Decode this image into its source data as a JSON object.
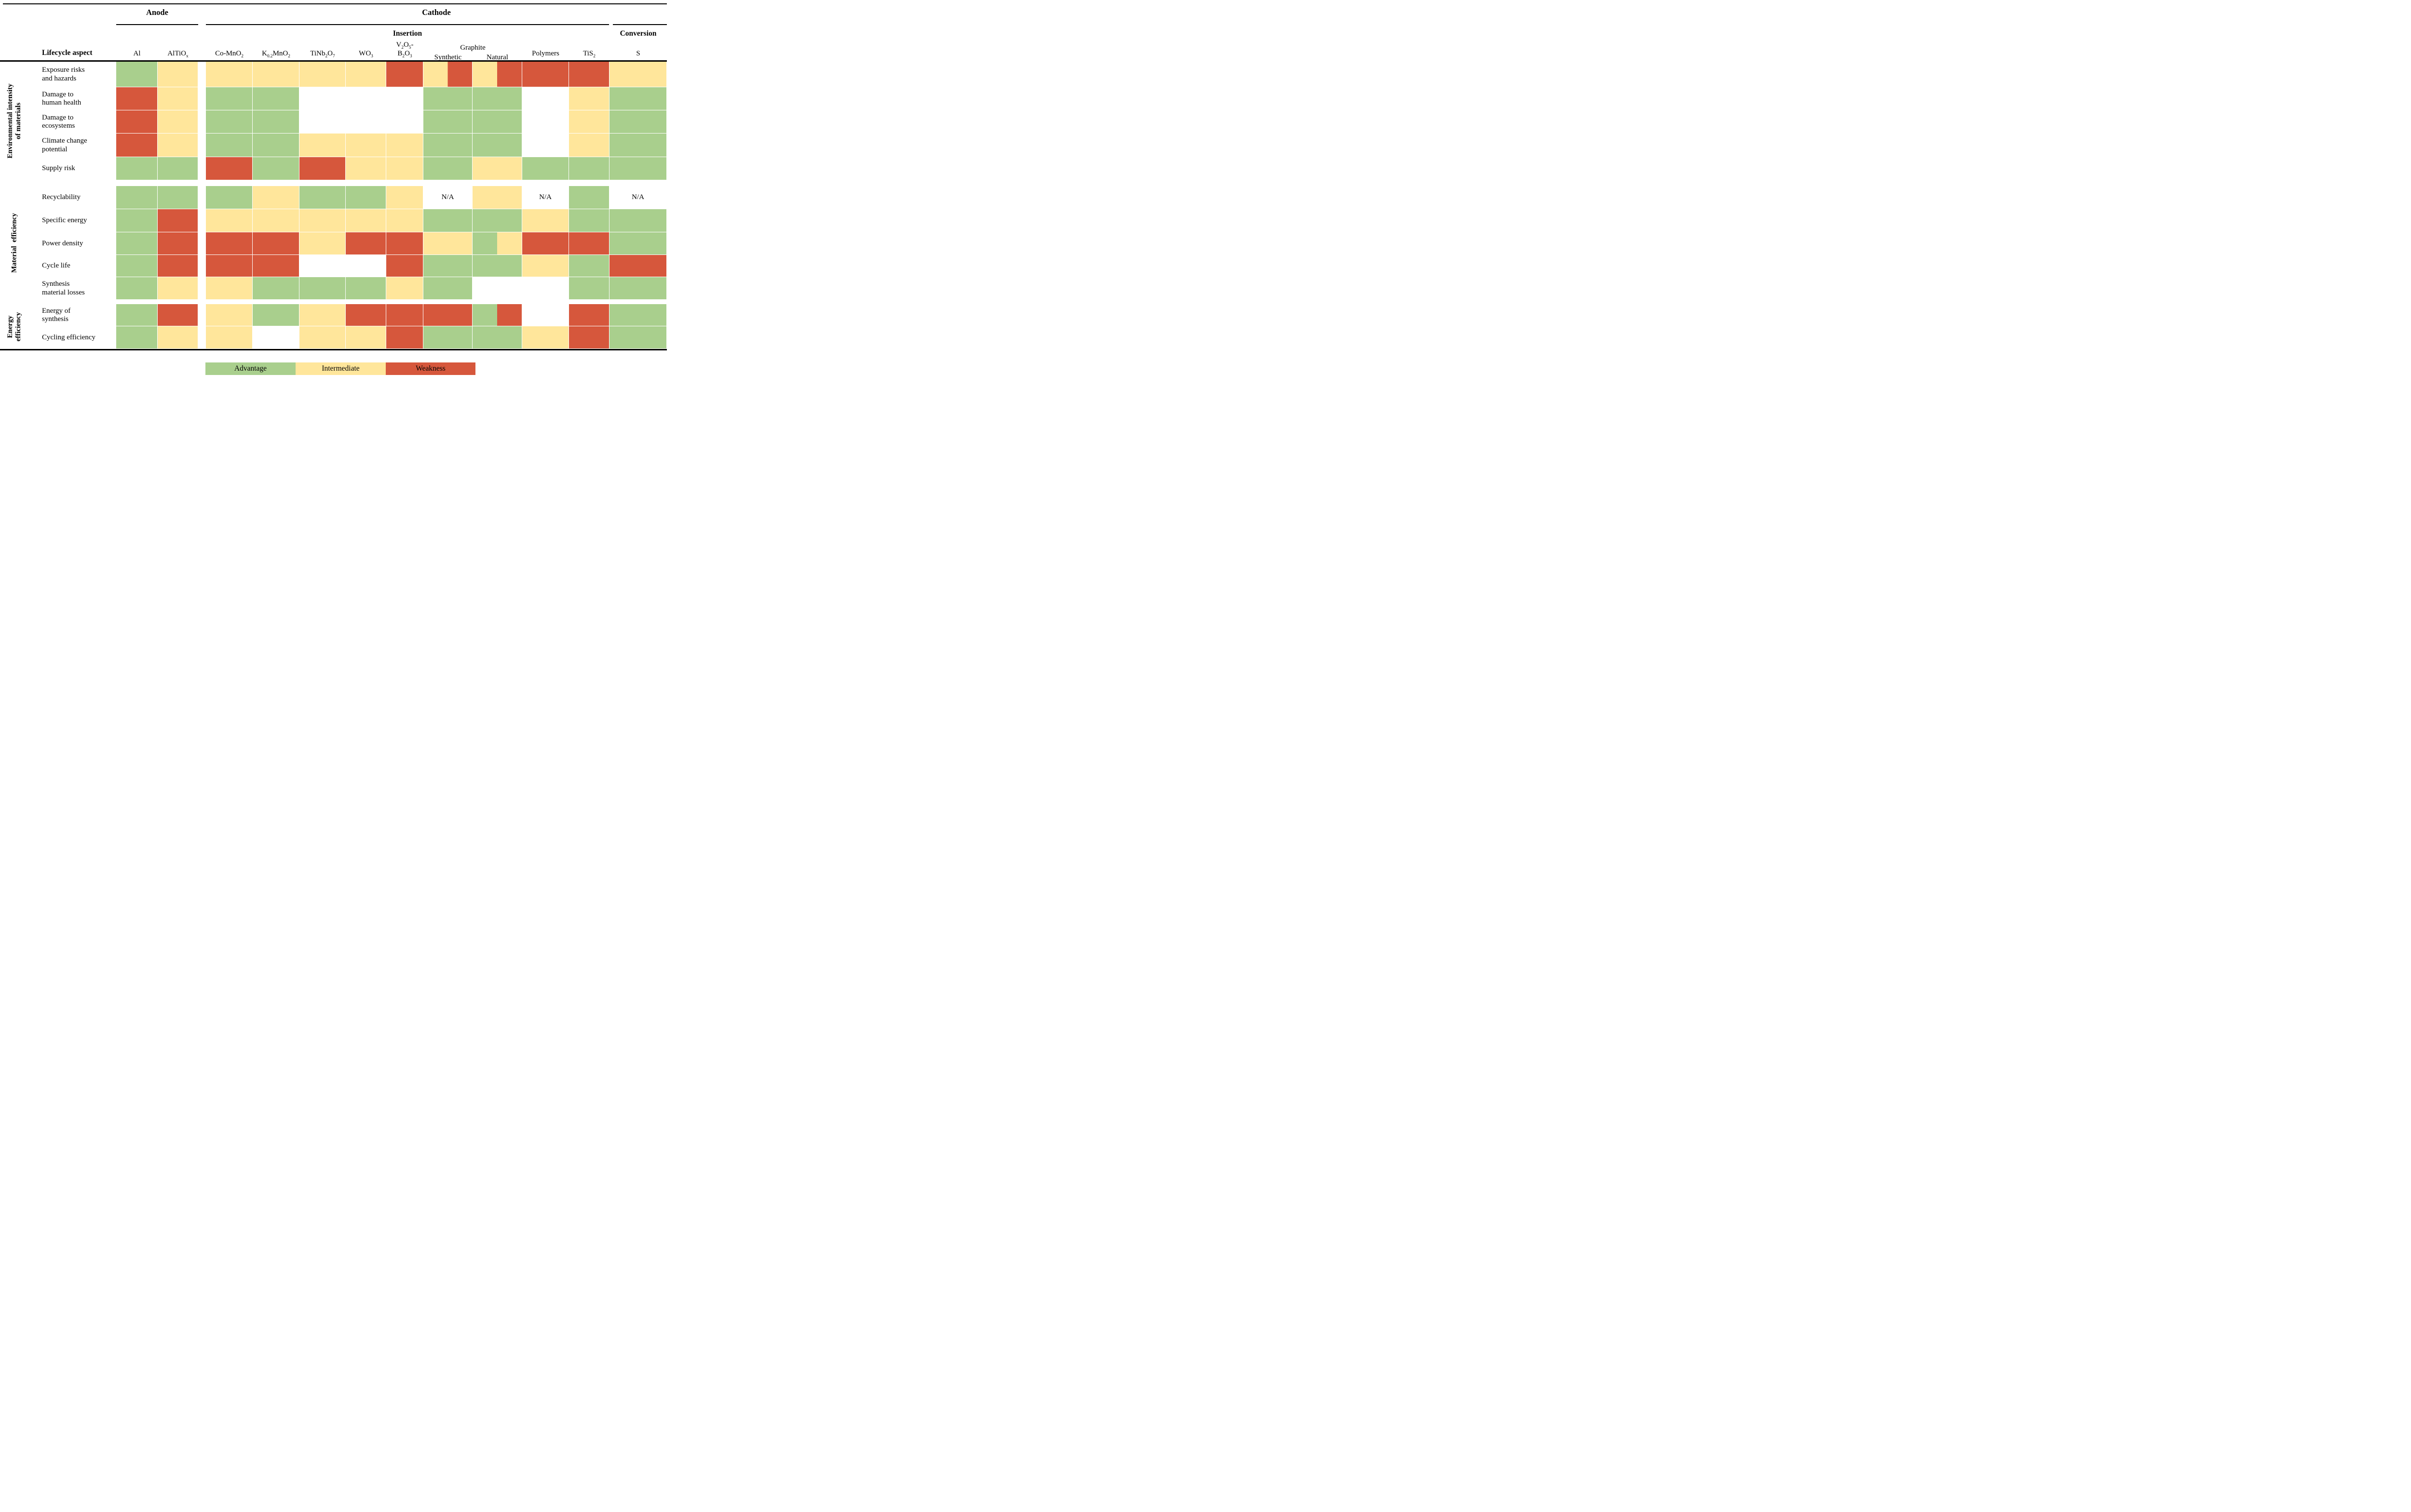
{
  "header": {
    "anode": "Anode",
    "cathode": "Cathode",
    "insertion": "Insertion",
    "conversion": "Conversion",
    "graphite": "Graphite",
    "lifecycle_aspect": "Lifecycle aspect"
  },
  "na_label": "N/A",
  "colors": {
    "g": "#a9cf8d",
    "y": "#ffe69b",
    "r": "#d6573c",
    "w": "#ffffff"
  },
  "legend": [
    {
      "key": "g",
      "label": "Advantage"
    },
    {
      "key": "y",
      "label": "Intermediate"
    },
    {
      "key": "r",
      "label": "Weakness"
    }
  ],
  "chart_data": {
    "type": "heatmap",
    "title": "Lifecycle aspects of anode and cathode materials",
    "value_key": {
      "g": "Advantage",
      "y": "Intermediate",
      "r": "Weakness",
      "w": "blank",
      "na": "N/A",
      "a/b": "left half a, right half b"
    },
    "columns": [
      {
        "label": "Al",
        "group": "Anode"
      },
      {
        "label": "AlTiO{x}",
        "group": "Anode"
      },
      {
        "label": "Co-MnO{2}",
        "group": "Cathode / Insertion"
      },
      {
        "label": "K{0.2}MnO{2}",
        "group": "Cathode / Insertion"
      },
      {
        "label": "TiNb{2}O{7}",
        "group": "Cathode / Insertion"
      },
      {
        "label": "WO{3}",
        "group": "Cathode / Insertion"
      },
      {
        "label": "V{2}O{5}-\nB{2}O{3}",
        "group": "Cathode / Insertion"
      },
      {
        "label": "Synthetic",
        "group": "Cathode / Insertion / Graphite"
      },
      {
        "label": "Natural",
        "group": "Cathode / Insertion / Graphite"
      },
      {
        "label": "Polymers",
        "group": "Cathode / Insertion"
      },
      {
        "label": "TiS{2}",
        "group": "Cathode / Insertion"
      },
      {
        "label": "S",
        "group": "Cathode / Conversion"
      }
    ],
    "groups": [
      {
        "label": "Environmental intensity\nof materials",
        "rows": [
          {
            "label": "Exposure risks\nand hazards",
            "cells": [
              "g",
              "y",
              "y",
              "y",
              "y",
              "y",
              "r",
              "y/r",
              "y/r",
              "r",
              "r",
              "y"
            ]
          },
          {
            "label": "Damage to\nhuman health",
            "cells": [
              "r",
              "y",
              "g",
              "g",
              "w",
              "w",
              "w",
              "g",
              "g",
              "w",
              "y",
              "g"
            ]
          },
          {
            "label": "Damage to\necosystems",
            "cells": [
              "r",
              "y",
              "g",
              "g",
              "w",
              "w",
              "w",
              "g",
              "g",
              "w",
              "y",
              "g"
            ]
          },
          {
            "label": "Climate change\npotential",
            "cells": [
              "r",
              "y",
              "g",
              "g",
              "y",
              "y",
              "y",
              "g",
              "g",
              "w",
              "y",
              "g"
            ]
          },
          {
            "label": "Supply risk",
            "cells": [
              "g",
              "g",
              "r",
              "g",
              "r",
              "y",
              "y",
              "g",
              "y",
              "g",
              "g",
              "g"
            ]
          }
        ]
      },
      {
        "label": "Material  efficiency",
        "rows": [
          {
            "label": "Recyclability",
            "cells": [
              "g",
              "g",
              "g",
              "y",
              "g",
              "g",
              "y",
              "na",
              "y",
              "na",
              "g",
              "na"
            ]
          },
          {
            "label": "Specific energy",
            "cells": [
              "g",
              "r",
              "y",
              "y",
              "y",
              "y",
              "y",
              "g",
              "g",
              "y",
              "g",
              "g"
            ]
          },
          {
            "label": "Power density",
            "cells": [
              "g",
              "r",
              "r",
              "r",
              "y",
              "r",
              "r",
              "y",
              "g/y",
              "r",
              "r",
              "g"
            ]
          },
          {
            "label": "Cycle life",
            "cells": [
              "g",
              "r",
              "r",
              "r",
              "w",
              "w",
              "r",
              "g",
              "g",
              "y",
              "g",
              "r"
            ]
          },
          {
            "label": "Synthesis\nmaterial losses",
            "cells": [
              "g",
              "y",
              "y",
              "g",
              "g",
              "g",
              "y",
              "g",
              "w",
              "w",
              "g",
              "g"
            ]
          }
        ]
      },
      {
        "label": "Energy\nefficiency",
        "rows": [
          {
            "label": "Energy of\nsynthesis",
            "cells": [
              "g",
              "r",
              "y",
              "g",
              "y",
              "r",
              "r",
              "r",
              "g/r",
              "w",
              "r",
              "g"
            ]
          },
          {
            "label": "Cycling efficiency",
            "cells": [
              "g",
              "y",
              "y",
              "w",
              "y",
              "y",
              "r",
              "g",
              "g",
              "y",
              "r",
              "g"
            ]
          }
        ]
      }
    ]
  }
}
